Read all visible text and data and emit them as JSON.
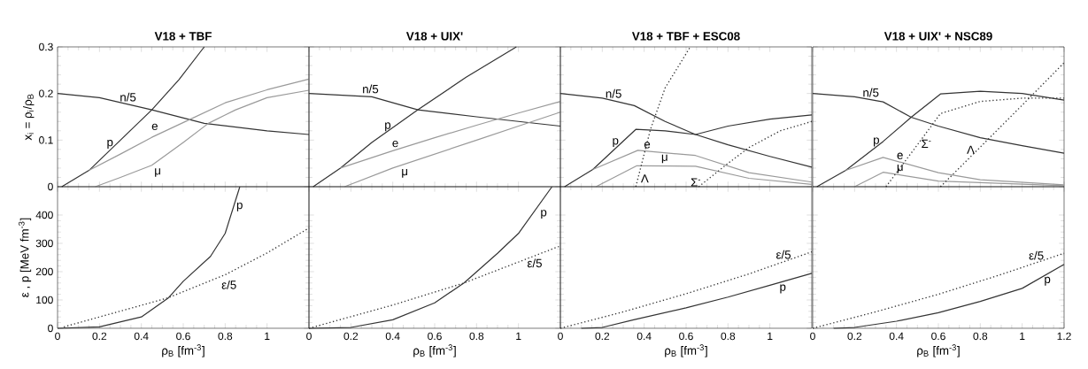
{
  "chart_data": [
    {
      "type": "line",
      "title": "V18 + TBF",
      "ylabel": "x$_{i}$ = ρ$_{i}$/ρ$_{B}$",
      "xlim": [
        0,
        1.2
      ],
      "xticks": [
        0,
        0.2,
        0.4,
        0.6,
        0.8,
        1
      ],
      "ylim": [
        0,
        0.3
      ],
      "yticks": [
        0,
        0.1,
        0.2,
        0.3
      ],
      "tick_labels": "y",
      "series": [
        {
          "name": "n/5",
          "color": "#333333",
          "line_style": "solid",
          "x": [
            0,
            0.2,
            0.45,
            0.7,
            1.0,
            1.2
          ],
          "values": [
            0.2,
            0.191,
            0.165,
            0.136,
            0.12,
            0.112
          ]
        },
        {
          "name": "p",
          "color": "#333333",
          "line_style": "solid",
          "x": [
            0.02,
            0.15,
            0.3,
            0.45,
            0.58,
            0.7
          ],
          "values": [
            0,
            0.035,
            0.1,
            0.165,
            0.23,
            0.3
          ]
        },
        {
          "name": "e",
          "color": "#9a9a9a",
          "line_style": "solid",
          "x": [
            0.15,
            0.3,
            0.45,
            0.63,
            0.8,
            1.0,
            1.2
          ],
          "values": [
            0.035,
            0.07,
            0.106,
            0.144,
            0.18,
            0.208,
            0.231
          ]
        },
        {
          "name": "μ",
          "color": "#9a9a9a",
          "line_style": "solid",
          "x": [
            0.18,
            0.3,
            0.45,
            0.6,
            0.72,
            0.85,
            1.0,
            1.2
          ],
          "values": [
            0,
            0.02,
            0.046,
            0.095,
            0.136,
            0.165,
            0.191,
            0.207
          ]
        }
      ]
    },
    {
      "type": "line",
      "title": "V18 + UIX'",
      "xlim": [
        0,
        1.2
      ],
      "xticks": [
        0,
        0.2,
        0.4,
        0.6,
        0.8,
        1
      ],
      "ylim": [
        0,
        0.3
      ],
      "yticks": [
        0,
        0.1,
        0.2,
        0.3
      ],
      "tick_labels": false,
      "series": [
        {
          "name": "n/5",
          "color": "#333333",
          "line_style": "solid",
          "x": [
            0,
            0.3,
            0.52,
            0.8,
            1.0,
            1.2
          ],
          "values": [
            0.2,
            0.193,
            0.165,
            0.15,
            0.14,
            0.13
          ]
        },
        {
          "name": "p",
          "color": "#333333",
          "line_style": "solid",
          "x": [
            0.02,
            0.15,
            0.3,
            0.52,
            0.75,
            0.99
          ],
          "values": [
            0,
            0.04,
            0.095,
            0.165,
            0.235,
            0.3
          ]
        },
        {
          "name": "e",
          "color": "#9a9a9a",
          "line_style": "solid",
          "x": [
            0.15,
            0.4,
            0.6,
            0.8,
            1.0,
            1.2
          ],
          "values": [
            0.04,
            0.077,
            0.105,
            0.132,
            0.158,
            0.183
          ]
        },
        {
          "name": "μ",
          "color": "#9a9a9a",
          "line_style": "solid",
          "x": [
            0.17,
            0.4,
            0.6,
            0.8,
            1.0,
            1.2
          ],
          "values": [
            0,
            0.04,
            0.07,
            0.1,
            0.13,
            0.16
          ]
        }
      ]
    },
    {
      "type": "line",
      "title": "V18 + TBF + ESC08",
      "xlim": [
        0,
        1.2
      ],
      "xticks": [
        0,
        0.2,
        0.4,
        0.6,
        0.8,
        1
      ],
      "ylim": [
        0,
        0.3
      ],
      "yticks": [
        0,
        0.1,
        0.2,
        0.3
      ],
      "tick_labels": false,
      "series": [
        {
          "name": "n/5",
          "color": "#333333",
          "line_style": "solid",
          "x": [
            0,
            0.2,
            0.353,
            0.5,
            0.645,
            0.8,
            1.0,
            1.2
          ],
          "values": [
            0.2,
            0.19,
            0.174,
            0.14,
            0.112,
            0.09,
            0.065,
            0.042
          ]
        },
        {
          "name": "p",
          "color": "#333333",
          "line_style": "solid",
          "x": [
            0.02,
            0.155,
            0.36,
            0.5,
            0.645,
            0.8,
            1.0,
            1.2
          ],
          "values": [
            0,
            0.037,
            0.123,
            0.12,
            0.112,
            0.13,
            0.145,
            0.154
          ]
        },
        {
          "name": "e",
          "color": "#9a9a9a",
          "line_style": "solid",
          "x": [
            0.155,
            0.37,
            0.645,
            0.9,
            1.2
          ],
          "values": [
            0.037,
            0.078,
            0.067,
            0.03,
            0.01
          ]
        },
        {
          "name": "μ",
          "color": "#9a9a9a",
          "line_style": "solid",
          "x": [
            0.17,
            0.365,
            0.645,
            0.9,
            1.2
          ],
          "values": [
            0,
            0.045,
            0.044,
            0.018,
            0.005
          ]
        },
        {
          "name": "Λ",
          "color": "#333333",
          "line_style": "dotted",
          "x": [
            0.36,
            0.43,
            0.5,
            0.62
          ],
          "values": [
            0,
            0.123,
            0.212,
            0.3
          ]
        },
        {
          "name": "Σ$^{-}$",
          "color": "#333333",
          "line_style": "dotted",
          "x": [
            0.66,
            0.8,
            0.9,
            1.05,
            1.2
          ],
          "values": [
            0,
            0.05,
            0.084,
            0.12,
            0.14
          ]
        }
      ]
    },
    {
      "type": "line",
      "title": "V18 + UIX' + NSC89",
      "xlim": [
        0,
        1.2
      ],
      "xticks": [
        0,
        0.2,
        0.4,
        0.6,
        0.8,
        1,
        1.2
      ],
      "ylim": [
        0,
        0.3
      ],
      "yticks": [
        0,
        0.1,
        0.2,
        0.3
      ],
      "tick_labels": false,
      "series": [
        {
          "name": "n/5",
          "color": "#333333",
          "line_style": "solid",
          "x": [
            0,
            0.2,
            0.336,
            0.47,
            0.6,
            0.8,
            1.0,
            1.2
          ],
          "values": [
            0.2,
            0.193,
            0.182,
            0.149,
            0.13,
            0.105,
            0.088,
            0.072
          ]
        },
        {
          "name": "p",
          "color": "#333333",
          "line_style": "solid",
          "x": [
            0.02,
            0.158,
            0.336,
            0.47,
            0.61,
            0.8,
            1.0,
            1.2
          ],
          "values": [
            0,
            0.035,
            0.097,
            0.149,
            0.199,
            0.205,
            0.2,
            0.186
          ]
        },
        {
          "name": "e",
          "color": "#9a9a9a",
          "line_style": "solid",
          "x": [
            0.158,
            0.336,
            0.6,
            0.8,
            1.2
          ],
          "values": [
            0.035,
            0.063,
            0.03,
            0.015,
            0.004
          ]
        },
        {
          "name": "μ",
          "color": "#9a9a9a",
          "line_style": "solid",
          "x": [
            0.2,
            0.336,
            0.6,
            1.2
          ],
          "values": [
            0,
            0.031,
            0.012,
            0.002
          ]
        },
        {
          "name": "Σ$^{-}$",
          "color": "#333333",
          "line_style": "dotted",
          "x": [
            0.35,
            0.5,
            0.61,
            0.8,
            1.0,
            1.2
          ],
          "values": [
            0,
            0.09,
            0.157,
            0.183,
            0.19,
            0.19
          ]
        },
        {
          "name": "Λ",
          "color": "#333333",
          "line_style": "dotted",
          "x": [
            0.61,
            0.8,
            1.0,
            1.2
          ],
          "values": [
            0,
            0.085,
            0.175,
            0.266
          ]
        }
      ]
    },
    {
      "type": "line",
      "xlabel": "ρ$_{B}$ [fm$^{-3}$]",
      "ylabel": "ε , p [MeV fm$^{-3}$]",
      "xlim": [
        0,
        1.2
      ],
      "xticks": [
        0,
        0.2,
        0.4,
        0.6,
        0.8,
        1
      ],
      "ylim": [
        0,
        500
      ],
      "yticks": [
        0,
        100,
        200,
        300,
        400
      ],
      "series": [
        {
          "name": "p",
          "color": "#333333",
          "line_style": "solid",
          "x": [
            0,
            0.2,
            0.4,
            0.53,
            0.6,
            0.73,
            0.8,
            0.87
          ],
          "values": [
            0,
            5,
            40,
            108,
            166,
            254,
            335,
            500
          ]
        },
        {
          "name": "ε/5",
          "color": "#333333",
          "line_style": "dotted",
          "x": [
            0.03,
            0.53,
            0.8,
            1.0,
            1.2
          ],
          "values": [
            5,
            108,
            189,
            266,
            354
          ]
        }
      ]
    },
    {
      "type": "line",
      "xlabel": "ρ$_{B}$ [fm$^{-3}$]",
      "xlim": [
        0,
        1.2
      ],
      "xticks": [
        0,
        0.2,
        0.4,
        0.6,
        0.8,
        1
      ],
      "ylim": [
        0,
        500
      ],
      "yticks": [
        0,
        100,
        200,
        300,
        400
      ],
      "tick_labels": "x",
      "series": [
        {
          "name": "p",
          "color": "#333333",
          "line_style": "solid",
          "x": [
            0,
            0.2,
            0.4,
            0.6,
            0.74,
            0.9,
            1.0,
            1.16
          ],
          "values": [
            0,
            3,
            30,
            90,
            160,
            265,
            335,
            500
          ]
        },
        {
          "name": "ε/5",
          "color": "#333333",
          "line_style": "dotted",
          "x": [
            0,
            0.4,
            0.74,
            1.2
          ],
          "values": [
            0,
            82,
            160,
            291
          ]
        }
      ]
    },
    {
      "type": "line",
      "xlabel": "ρ$_{B}$ [fm$^{-3}$]",
      "xlim": [
        0,
        1.2
      ],
      "xticks": [
        0,
        0.2,
        0.4,
        0.6,
        0.8,
        1
      ],
      "ylim": [
        0,
        500
      ],
      "yticks": [
        0,
        100,
        200,
        300,
        400
      ],
      "tick_labels": "x",
      "series": [
        {
          "name": "p",
          "color": "#333333",
          "line_style": "solid",
          "x": [
            0.1,
            0.2,
            0.35,
            0.6,
            0.8,
            1.0,
            1.2
          ],
          "values": [
            0,
            3,
            30,
            72,
            110,
            152,
            194
          ]
        },
        {
          "name": "ε/5",
          "color": "#333333",
          "line_style": "dotted",
          "x": [
            0,
            0.3,
            0.6,
            0.9,
            1.2
          ],
          "values": [
            0,
            58,
            122,
            192,
            270
          ]
        }
      ]
    },
    {
      "type": "line",
      "xlabel": "ρ$_{B}$ [fm$^{-3}$]",
      "xlim": [
        0,
        1.2
      ],
      "xticks": [
        0,
        0.2,
        0.4,
        0.6,
        0.8,
        1,
        1.2
      ],
      "ylim": [
        0,
        500
      ],
      "yticks": [
        0,
        100,
        200,
        300,
        400
      ],
      "tick_labels": "x",
      "series": [
        {
          "name": "p",
          "color": "#333333",
          "line_style": "solid",
          "x": [
            0.1,
            0.2,
            0.4,
            0.6,
            0.8,
            1.0,
            1.2
          ],
          "values": [
            0,
            3,
            25,
            55,
            95,
            141,
            226
          ]
        },
        {
          "name": "ε/5",
          "color": "#333333",
          "line_style": "dotted",
          "x": [
            0,
            0.3,
            0.6,
            0.9,
            1.2
          ],
          "values": [
            0,
            58,
            120,
            190,
            265
          ]
        }
      ]
    }
  ]
}
